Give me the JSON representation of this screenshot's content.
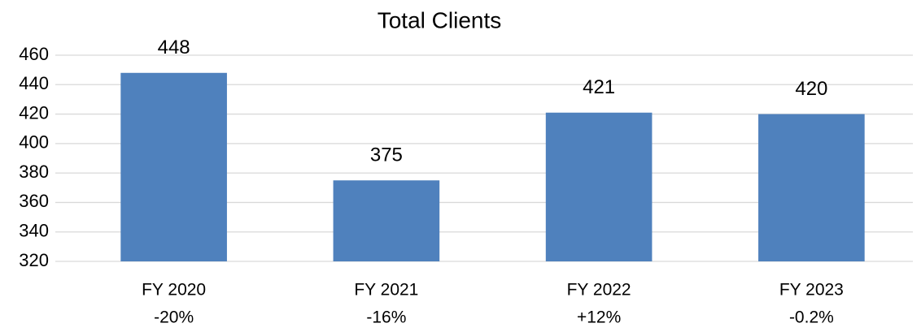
{
  "chart_data": {
    "type": "bar",
    "title": "Total Clients",
    "categories": [
      "FY 2020",
      "FY 2021",
      "FY 2022",
      "FY 2023"
    ],
    "changes": [
      "-20%",
      "-16%",
      "+12%",
      "-0.2%"
    ],
    "values": [
      448,
      375,
      421,
      420
    ],
    "color": "#4f81bd",
    "ylim": [
      320,
      460
    ],
    "yticks": [
      320,
      340,
      360,
      380,
      400,
      420,
      440,
      460
    ],
    "grid": true
  }
}
